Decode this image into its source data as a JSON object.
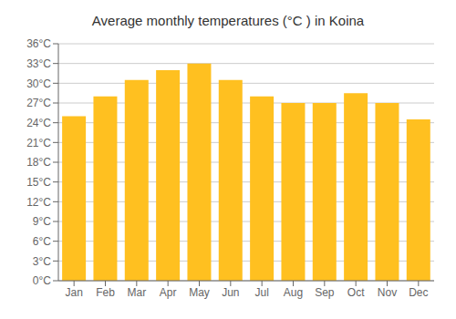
{
  "chart_data": {
    "type": "bar",
    "title": "Average monthly temperatures (°C ) in Koina",
    "categories": [
      "Jan",
      "Feb",
      "Mar",
      "Apr",
      "May",
      "Jun",
      "Jul",
      "Aug",
      "Sep",
      "Oct",
      "Nov",
      "Dec"
    ],
    "values": [
      25.0,
      28.0,
      30.5,
      32.0,
      33.0,
      30.5,
      28.0,
      27.0,
      27.0,
      28.5,
      27.0,
      24.5
    ],
    "color": "#FFC020",
    "ylim": [
      0,
      36
    ],
    "yticks": [
      {
        "value": 0,
        "label": "0°C"
      },
      {
        "value": 3,
        "label": "3°C"
      },
      {
        "value": 6,
        "label": "6°C"
      },
      {
        "value": 9,
        "label": "9°C"
      },
      {
        "value": 12,
        "label": "12°C"
      },
      {
        "value": 15,
        "label": "15°C"
      },
      {
        "value": 18,
        "label": "18°C"
      },
      {
        "value": 21,
        "label": "21°C"
      },
      {
        "value": 24,
        "label": "24°C"
      },
      {
        "value": 27,
        "label": "27°C"
      },
      {
        "value": 30,
        "label": "30°C"
      },
      {
        "value": 33,
        "label": "33°C"
      },
      {
        "value": 36,
        "label": "36°C"
      }
    ],
    "grid": true
  }
}
